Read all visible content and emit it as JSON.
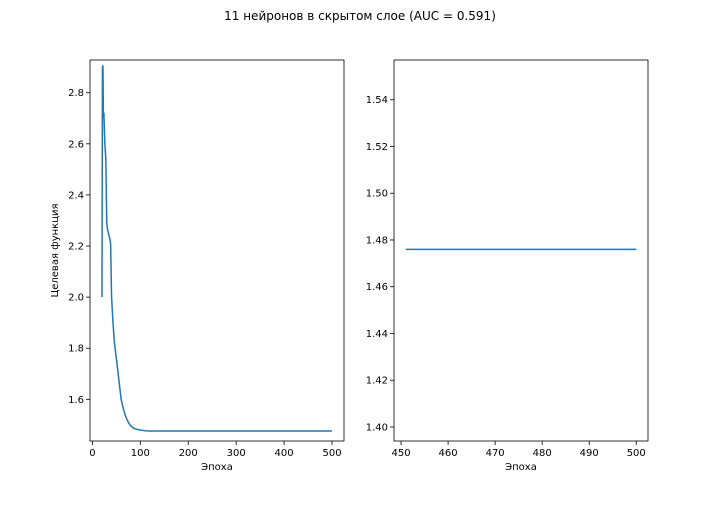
{
  "figure": {
    "suptitle": "11 нейронов в скрытом слое (AUC = 0.591)"
  },
  "chart_data": [
    {
      "type": "line",
      "title": "",
      "xlabel": "Эпоха",
      "ylabel": "Целевая функция",
      "xlim": [
        -5,
        525
      ],
      "ylim": [
        1.437,
        2.928
      ],
      "xticks": [
        0,
        100,
        200,
        300,
        400,
        500
      ],
      "yticks": [
        1.6,
        1.8,
        2.0,
        2.2,
        2.4,
        2.6,
        2.8
      ],
      "ytick_format": 1,
      "grid": false,
      "series": [
        {
          "color": "#1f77b4",
          "x": [
            20,
            21,
            22,
            23,
            24,
            25,
            26,
            28,
            30,
            32,
            35,
            38,
            40,
            43,
            46,
            50,
            55,
            60,
            65,
            70,
            75,
            80,
            85,
            90,
            95,
            100,
            110,
            120,
            140,
            170,
            200,
            300,
            400,
            500
          ],
          "y": [
            2.0,
            2.9,
            2.905,
            2.7,
            2.72,
            2.65,
            2.6,
            2.54,
            2.29,
            2.26,
            2.24,
            2.21,
            2.0,
            1.9,
            1.82,
            1.76,
            1.68,
            1.6,
            1.56,
            1.53,
            1.51,
            1.496,
            1.488,
            1.484,
            1.482,
            1.48,
            1.477,
            1.476,
            1.476,
            1.476,
            1.476,
            1.476,
            1.476,
            1.476
          ]
        }
      ]
    },
    {
      "type": "line",
      "title": "",
      "xlabel": "Эпоха",
      "ylabel": "",
      "xlim": [
        448.5,
        502.5
      ],
      "ylim": [
        1.394,
        1.557
      ],
      "xticks": [
        450,
        460,
        470,
        480,
        490,
        500
      ],
      "yticks": [
        1.4,
        1.42,
        1.44,
        1.46,
        1.48,
        1.5,
        1.52,
        1.54
      ],
      "ytick_format": 2,
      "grid": false,
      "series": [
        {
          "color": "#1f77b4",
          "x": [
            451,
            500
          ],
          "y": [
            1.476,
            1.476
          ]
        }
      ]
    }
  ]
}
